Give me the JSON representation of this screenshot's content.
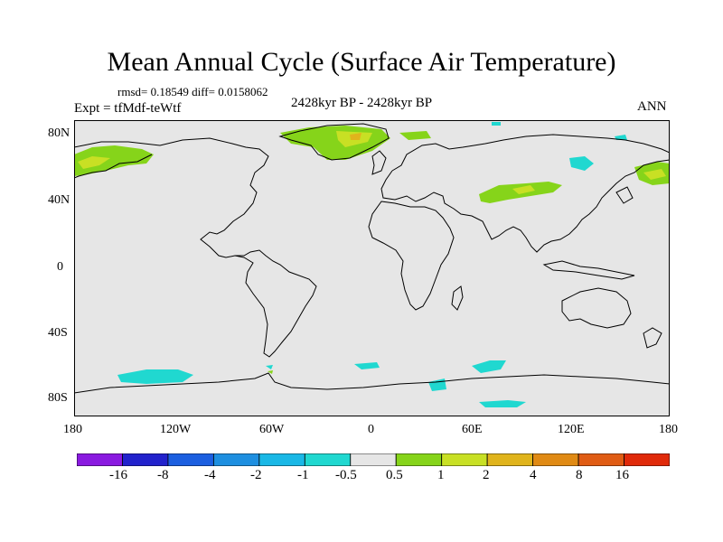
{
  "title": "Mean Annual Cycle (Surface Air Temperature)",
  "stats": "rmsd= 0.18549 diff= 0.0158062",
  "experiment": "Expt = tfMdf-teWtf",
  "period": "2428kyr BP - 2428kyr BP",
  "season": "ANN",
  "axes": {
    "y_labels": [
      "80N",
      "40N",
      "0",
      "40S",
      "80S"
    ],
    "x_labels": [
      "180",
      "120W",
      "60W",
      "0",
      "60E",
      "120E",
      "180"
    ]
  },
  "colorbar": {
    "labels": [
      "-16",
      "-8",
      "-4",
      "-2",
      "-1",
      "-0.5",
      "0.5",
      "1",
      "2",
      "4",
      "8",
      "16"
    ],
    "colors": [
      "#8a1ae0",
      "#2222cc",
      "#1c5fe0",
      "#1e8fe0",
      "#1ab8e6",
      "#20d8d0",
      "#e6e6e6",
      "#86d41a",
      "#c8e024",
      "#e0b41c",
      "#e08a14",
      "#e05c14",
      "#e02a0a"
    ]
  },
  "colors": {
    "ocean_background": "#e6e6e6",
    "coastline": "#000000",
    "warm_small": "#86d41a",
    "warm_medium": "#c8e024",
    "cool_small": "#20d8d0"
  }
}
